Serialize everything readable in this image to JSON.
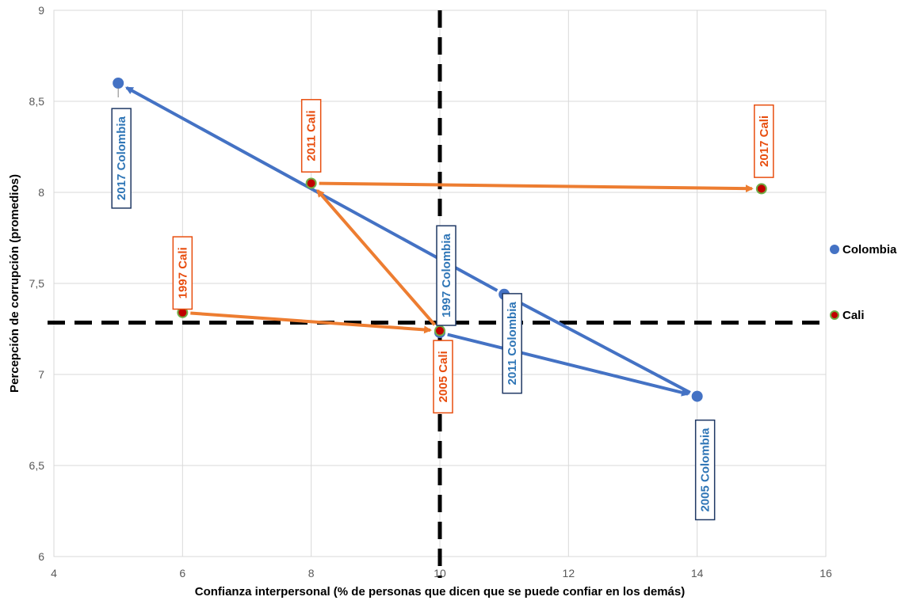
{
  "chart_data": {
    "type": "scatter",
    "xlabel": "Confianza interpersonal (% de personas que dicen que se puede confiar en los demás)",
    "ylabel": "Percepción de corrupción  (promedios)",
    "xlim": [
      4,
      16
    ],
    "ylim": [
      6,
      9
    ],
    "x_ticks": [
      "4",
      "6",
      "8",
      "10",
      "12",
      "14",
      "16"
    ],
    "y_ticks": [
      "6",
      "6,5",
      "7",
      "7,5",
      "8",
      "8,5",
      "9"
    ],
    "grid": true,
    "legend_position": "right",
    "reference_lines": {
      "x": 10,
      "y": 7.285
    },
    "series": [
      {
        "name": "Colombia",
        "color": "#4472C4",
        "points": [
          {
            "label": "1997 Colombia",
            "x": 10,
            "y": 7.23
          },
          {
            "label": "2005 Colombia",
            "x": 14,
            "y": 6.88
          },
          {
            "label": "2011 Colombia",
            "x": 11,
            "y": 7.44
          },
          {
            "label": "2017 Colombia",
            "x": 5,
            "y": 8.6
          }
        ]
      },
      {
        "name": "Cali",
        "color": "#ED7D31",
        "marker_color": "#C00000",
        "points": [
          {
            "label": "1997 Cali",
            "x": 6,
            "y": 7.34
          },
          {
            "label": "2005 Cali",
            "x": 10,
            "y": 7.24
          },
          {
            "label": "2011 Cali",
            "x": 8,
            "y": 8.05
          },
          {
            "label": "2017 Cali",
            "x": 15,
            "y": 8.02
          }
        ]
      }
    ]
  }
}
